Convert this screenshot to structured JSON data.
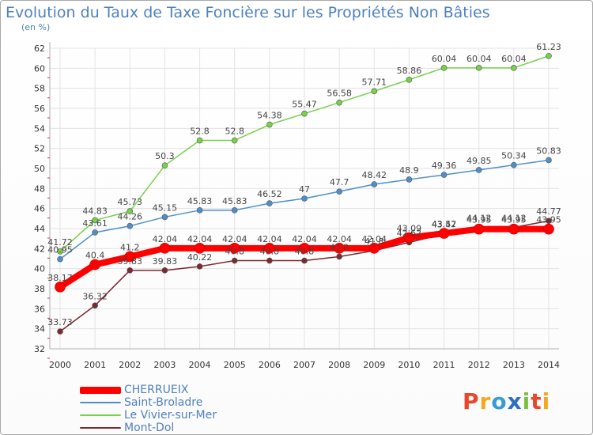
{
  "chart_data": {
    "type": "line",
    "title": "Evolution du Taux de Taxe Foncière sur les Propriétés Non Bâties",
    "subtitle": "(en %)",
    "x": [
      "2000",
      "2001",
      "2002",
      "2003",
      "2004",
      "2005",
      "2006",
      "2007",
      "2008",
      "2009",
      "2010",
      "2011",
      "2012",
      "2013",
      "2014"
    ],
    "ylim": [
      32,
      62
    ],
    "yticks": [
      32,
      34,
      36,
      38,
      40,
      42,
      44,
      46,
      48,
      50,
      52,
      54,
      56,
      58,
      60,
      62
    ],
    "grid": true,
    "legend_position": "bottom-left",
    "series": [
      {
        "name": "CHERRUEIX",
        "color": "#ff0000",
        "values": [
          38.17,
          40.4,
          41.2,
          42.04,
          42.04,
          42.04,
          42.04,
          42.04,
          42.04,
          42.04,
          43.09,
          43.52,
          43.95,
          43.95,
          43.95
        ],
        "labels": [
          "38.17",
          "40.4",
          "41.2",
          "42.04",
          "42.04",
          "42.04",
          "42.04",
          "42.04",
          "42.04",
          "42.04",
          "43.09",
          "43.52",
          "43.95",
          "43.95",
          "43.95"
        ]
      },
      {
        "name": "Saint-Broladre",
        "color": "#4f8fc9",
        "values": [
          40.95,
          43.61,
          44.26,
          45.15,
          45.83,
          45.83,
          46.52,
          47,
          47.7,
          48.42,
          48.9,
          49.36,
          49.85,
          50.34,
          50.83
        ],
        "labels": [
          "40.95",
          "43.61",
          "44.26",
          "45.15",
          "45.83",
          "45.83",
          "46.52",
          "47",
          "47.7",
          "48.42",
          "48.9",
          "49.36",
          "49.85",
          "50.34",
          "50.83"
        ]
      },
      {
        "name": "Le Vivier-sur-Mer",
        "color": "#77d14b",
        "values": [
          41.72,
          44.83,
          45.73,
          50.3,
          52.8,
          52.8,
          54.38,
          55.47,
          56.58,
          57.71,
          58.86,
          60.04,
          60.04,
          60.04,
          61.23
        ],
        "labels": [
          "41.72",
          "44.83",
          "45.73",
          "50.3",
          "52.8",
          "52.8",
          "54.38",
          "55.47",
          "56.58",
          "57.71",
          "58.86",
          "60.04",
          "60.04",
          "60.04",
          "61.23"
        ]
      },
      {
        "name": "Mont-Dol",
        "color": "#7b2a2f",
        "values": [
          33.73,
          36.32,
          39.83,
          39.83,
          40.22,
          40.8,
          40.8,
          40.8,
          41.2,
          41.8,
          42.62,
          43.47,
          44.12,
          44.12,
          44.77
        ],
        "labels": [
          "33.73",
          "36.32",
          "39.83",
          "39.83",
          "40.22",
          "40.8",
          "40.8",
          "40.8",
          "41.2",
          "41.8",
          "42.62",
          "43.47",
          "44.12",
          "44.12",
          "44.77"
        ]
      }
    ]
  },
  "logo": {
    "text": "Proxiti",
    "colors": [
      "#e8472c",
      "#f5a623",
      "#3a9bd9",
      "#2e6fbf",
      "#7bc043",
      "#e8472c",
      "#f5a623"
    ]
  }
}
